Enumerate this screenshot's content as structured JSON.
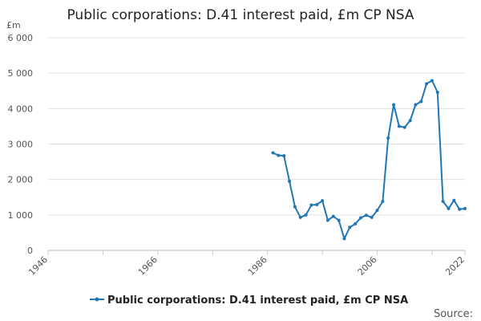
{
  "chart_data": {
    "type": "line",
    "title": "Public corporations: D.41 interest paid, £m CP NSA",
    "ylabel": "£m",
    "xlabel": "",
    "source_label": "Source:",
    "ylim": [
      0,
      6000
    ],
    "xlim": [
      1946,
      2022
    ],
    "yticks": [
      0,
      1000,
      2000,
      3000,
      4000,
      5000,
      6000
    ],
    "ytick_labels": [
      "0",
      "1 000",
      "2 000",
      "3 000",
      "4 000",
      "5 000",
      "6 000"
    ],
    "xticks": [
      1946,
      1966,
      1986,
      2006,
      2022
    ],
    "xtick_labels": [
      "1946",
      "1966",
      "1986",
      "2006",
      "2022"
    ],
    "grid": true,
    "legend_position": "bottom",
    "color": "#1f77b4",
    "series": [
      {
        "name": "Public corporations: D.41 interest paid, £m CP NSA",
        "x": [
          1987,
          1988,
          1989,
          1990,
          1991,
          1992,
          1993,
          1994,
          1995,
          1996,
          1997,
          1998,
          1999,
          2000,
          2001,
          2002,
          2003,
          2004,
          2005,
          2006,
          2007,
          2008,
          2009,
          2010,
          2011,
          2012,
          2013,
          2014,
          2015,
          2016,
          2017,
          2018,
          2019,
          2020,
          2021,
          2022
        ],
        "values": [
          2750,
          2680,
          2670,
          1950,
          1230,
          930,
          1000,
          1280,
          1290,
          1400,
          850,
          960,
          850,
          330,
          650,
          750,
          920,
          990,
          930,
          1130,
          1380,
          3170,
          4110,
          3500,
          3470,
          3660,
          4110,
          4200,
          4700,
          4790,
          4460,
          1380,
          1180,
          1410,
          1160,
          1180
        ]
      }
    ]
  }
}
